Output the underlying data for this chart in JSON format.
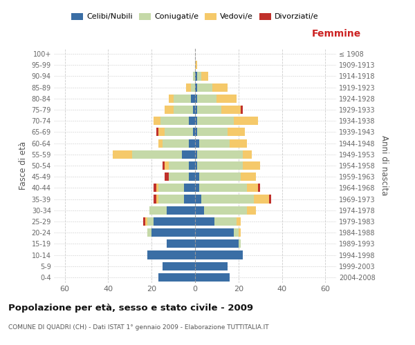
{
  "age_groups": [
    "0-4",
    "5-9",
    "10-14",
    "15-19",
    "20-24",
    "25-29",
    "30-34",
    "35-39",
    "40-44",
    "45-49",
    "50-54",
    "55-59",
    "60-64",
    "65-69",
    "70-74",
    "75-79",
    "80-84",
    "85-89",
    "90-94",
    "95-99",
    "100+"
  ],
  "birth_years": [
    "2004-2008",
    "1999-2003",
    "1994-1998",
    "1989-1993",
    "1984-1988",
    "1979-1983",
    "1974-1978",
    "1969-1973",
    "1964-1968",
    "1959-1963",
    "1954-1958",
    "1949-1953",
    "1944-1948",
    "1939-1943",
    "1934-1938",
    "1929-1933",
    "1924-1928",
    "1919-1923",
    "1914-1918",
    "1909-1913",
    "≤ 1908"
  ],
  "male": {
    "celibi": [
      17,
      15,
      22,
      13,
      20,
      19,
      13,
      5,
      5,
      3,
      3,
      6,
      3,
      1,
      3,
      1,
      2,
      0,
      0,
      0,
      0
    ],
    "coniugati": [
      0,
      0,
      0,
      0,
      2,
      3,
      8,
      12,
      12,
      9,
      9,
      23,
      12,
      13,
      13,
      9,
      8,
      2,
      1,
      0,
      0
    ],
    "vedovi": [
      0,
      0,
      0,
      0,
      0,
      1,
      0,
      1,
      1,
      0,
      2,
      9,
      2,
      3,
      3,
      4,
      2,
      2,
      0,
      0,
      0
    ],
    "divorziati": [
      0,
      0,
      0,
      0,
      0,
      1,
      0,
      1,
      1,
      2,
      1,
      0,
      0,
      1,
      0,
      0,
      0,
      0,
      0,
      0,
      0
    ]
  },
  "female": {
    "nubili": [
      16,
      15,
      22,
      20,
      18,
      9,
      4,
      3,
      2,
      2,
      1,
      1,
      2,
      1,
      1,
      1,
      1,
      1,
      1,
      0,
      0
    ],
    "coniugate": [
      0,
      0,
      0,
      1,
      2,
      10,
      20,
      24,
      22,
      19,
      21,
      21,
      14,
      14,
      17,
      11,
      9,
      7,
      2,
      0,
      0
    ],
    "vedove": [
      0,
      0,
      0,
      0,
      1,
      2,
      4,
      7,
      5,
      7,
      8,
      4,
      8,
      8,
      11,
      9,
      9,
      7,
      3,
      1,
      0
    ],
    "divorziate": [
      0,
      0,
      0,
      0,
      0,
      0,
      0,
      1,
      1,
      0,
      0,
      0,
      0,
      0,
      0,
      1,
      0,
      0,
      0,
      0,
      0
    ]
  },
  "colors": {
    "celibi": "#3A6EA5",
    "coniugati": "#C5D9A8",
    "vedovi": "#F5C96A",
    "divorziati": "#C0312B"
  },
  "title": "Popolazione per età, sesso e stato civile - 2009",
  "subtitle": "COMUNE DI QUADRI (CH) - Dati ISTAT 1° gennaio 2009 - Elaborazione TUTTITALIA.IT",
  "xlabel_right": "Femmine",
  "ylabel_left": "Fasce di età",
  "ylabel_right": "Anni di nascita",
  "xlim": 65,
  "xticks": [
    -60,
    -40,
    -20,
    0,
    20,
    40,
    60
  ],
  "xticklabels": [
    "60",
    "40",
    "20",
    "0",
    "20",
    "40",
    "60"
  ],
  "legend_labels": [
    "Celibi/Nubili",
    "Coniugati/e",
    "Vedovi/e",
    "Divorziati/e"
  ],
  "background_color": "#ffffff",
  "bar_height": 0.75
}
